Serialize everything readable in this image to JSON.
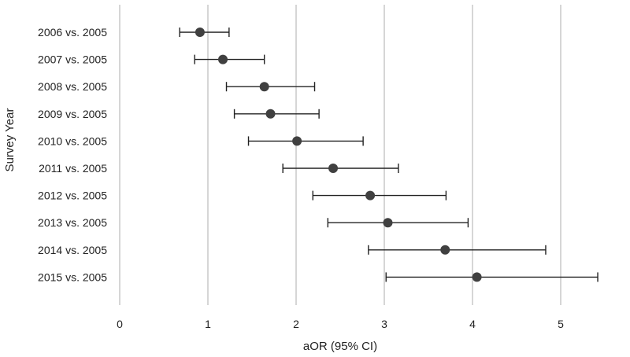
{
  "chart_data": {
    "type": "scatter",
    "orientation": "horizontal",
    "title": "",
    "xlabel": "aOR (95% CI)",
    "ylabel": "Survey Year",
    "xlim": [
      0,
      5.6
    ],
    "xticks": [
      0,
      1,
      2,
      3,
      4,
      5
    ],
    "grid": "vertical",
    "colors": {
      "point": "#404040",
      "errorbar": "#222222",
      "grid": "#bfbfbf"
    },
    "categories": [
      "2006 vs. 2005",
      "2007 vs. 2005",
      "2008 vs. 2005",
      "2009 vs. 2005",
      "2010 vs. 2005",
      "2011 vs. 2005",
      "2012 vs. 2005",
      "2013 vs. 2005",
      "2014 vs. 2005",
      "2015 vs. 2005"
    ],
    "values": [
      0.91,
      1.17,
      1.64,
      1.71,
      2.01,
      2.42,
      2.84,
      3.04,
      3.69,
      4.05
    ],
    "ci_low": [
      0.68,
      0.85,
      1.21,
      1.3,
      1.46,
      1.85,
      2.19,
      2.36,
      2.82,
      3.02
    ],
    "ci_high": [
      1.24,
      1.64,
      2.21,
      2.26,
      2.76,
      3.16,
      3.7,
      3.95,
      4.83,
      5.42
    ]
  }
}
